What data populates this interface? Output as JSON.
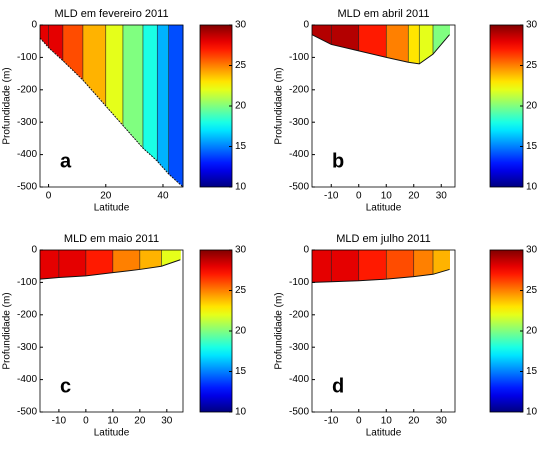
{
  "chart_data": [
    {
      "type": "contour",
      "title": "MLD em fevereiro 2011",
      "xlabel": "Latitude",
      "ylabel": "Profundidade (m)",
      "panel_label": "a",
      "x": [
        -3,
        0,
        5,
        12,
        20,
        26,
        33,
        38,
        42,
        47
      ],
      "depth": [
        -40,
        -70,
        -110,
        -170,
        -250,
        -310,
        -380,
        -420,
        -460,
        -500
      ],
      "values": [
        28,
        28,
        26,
        24,
        22,
        20,
        18,
        16,
        14,
        12
      ],
      "xlim": [
        -3,
        47
      ],
      "xticks": [
        0,
        20,
        40
      ],
      "ylim": [
        -500,
        0
      ],
      "yticks": [
        -500,
        -400,
        -300,
        -200,
        -100,
        0
      ],
      "clim": [
        10,
        30
      ],
      "cticks": [
        10,
        15,
        20,
        25,
        30
      ],
      "colormap": "jet"
    },
    {
      "type": "contour",
      "title": "MLD em abril 2011",
      "xlabel": "Latitude",
      "ylabel": "Profundidade (m)",
      "panel_label": "b",
      "x": [
        -17,
        -10,
        0,
        10,
        18,
        22,
        27,
        33
      ],
      "depth": [
        -30,
        -60,
        -80,
        -100,
        -115,
        -120,
        -90,
        -30
      ],
      "values": [
        29,
        29,
        27,
        25,
        23,
        22,
        20,
        18
      ],
      "xlim": [
        -17,
        35
      ],
      "xticks": [
        -10,
        0,
        10,
        20,
        30
      ],
      "ylim": [
        -500,
        0
      ],
      "yticks": [
        -500,
        -400,
        -300,
        -200,
        -100,
        0
      ],
      "clim": [
        10,
        30
      ],
      "cticks": [
        10,
        15,
        20,
        25,
        30
      ],
      "colormap": "jet"
    },
    {
      "type": "contour",
      "title": "MLD em maio 2011",
      "xlabel": "Latitude",
      "ylabel": "Profundidade (m)",
      "panel_label": "c",
      "x": [
        -17,
        -10,
        0,
        10,
        20,
        28,
        35
      ],
      "depth": [
        -90,
        -85,
        -80,
        -70,
        -60,
        -50,
        -30
      ],
      "values": [
        28,
        28,
        27,
        25,
        24,
        22,
        20
      ],
      "xlim": [
        -17,
        36
      ],
      "xticks": [
        -10,
        0,
        10,
        20,
        30
      ],
      "ylim": [
        -500,
        0
      ],
      "yticks": [
        -500,
        -400,
        -300,
        -200,
        -100,
        0
      ],
      "clim": [
        10,
        30
      ],
      "cticks": [
        10,
        15,
        20,
        25,
        30
      ],
      "colormap": "jet"
    },
    {
      "type": "contour",
      "title": "MLD em julho 2011",
      "xlabel": "Latitude",
      "ylabel": "Profundidade (m)",
      "panel_label": "d",
      "x": [
        -17,
        -10,
        0,
        10,
        20,
        27,
        33
      ],
      "depth": [
        -100,
        -98,
        -95,
        -90,
        -82,
        -75,
        -60
      ],
      "values": [
        28,
        28,
        27,
        26,
        25,
        24,
        22
      ],
      "xlim": [
        -17,
        35
      ],
      "xticks": [
        -10,
        0,
        10,
        20,
        30
      ],
      "ylim": [
        -500,
        0
      ],
      "yticks": [
        -500,
        -400,
        -300,
        -200,
        -100,
        0
      ],
      "clim": [
        10,
        30
      ],
      "cticks": [
        10,
        15,
        20,
        25,
        30
      ],
      "colormap": "jet"
    }
  ]
}
